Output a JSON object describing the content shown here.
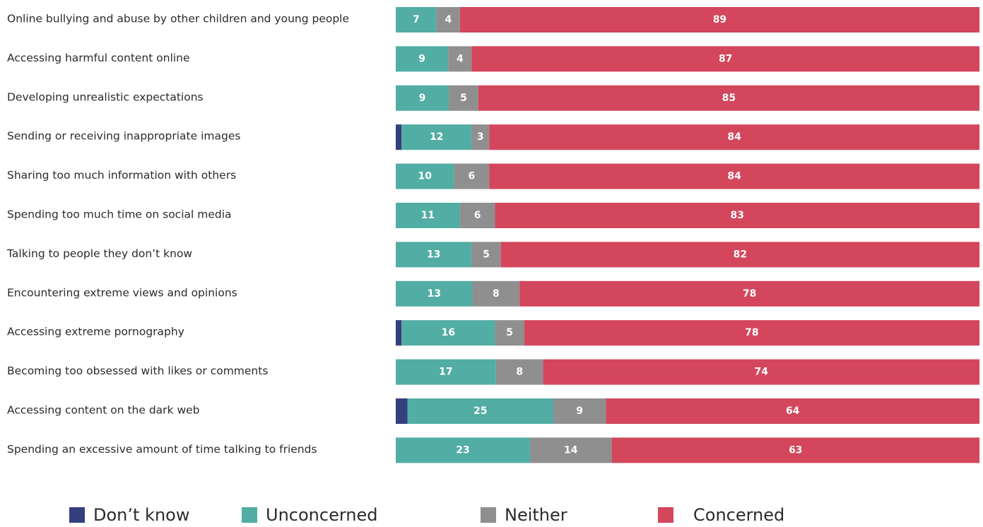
{
  "chart_data": {
    "type": "bar",
    "orientation": "horizontal",
    "stacked": true,
    "categories": [
      "Online bullying and abuse by other children and young people",
      "Accessing harmful content online",
      "Developing unrealistic expectations",
      "Sending or receiving inappropriate images",
      "Sharing too much information with others",
      "Spending too much time on social media",
      "Talking to people they don’t know",
      "Encountering extreme views and opinions",
      "Accessing extreme pornography",
      "Becoming too obsessed with likes or comments",
      "Accessing content on the dark web",
      "Spending an excessive amount of time talking to friends"
    ],
    "series": [
      {
        "name": "Don’t know",
        "color": "#343f7d",
        "values": [
          0,
          0,
          0,
          1,
          0,
          0,
          0,
          0,
          1,
          0,
          2,
          0
        ],
        "labels": [
          "",
          "",
          "",
          "",
          "",
          "",
          "",
          "",
          "",
          "",
          "",
          ""
        ]
      },
      {
        "name": "Unconcerned",
        "color": "#52ada4",
        "values": [
          7,
          9,
          9,
          12,
          10,
          11,
          13,
          13,
          16,
          17,
          25,
          23
        ],
        "labels": [
          "7",
          "9",
          "9",
          "12",
          "10",
          "11",
          "13",
          "13",
          "16",
          "17",
          "25",
          "23"
        ]
      },
      {
        "name": "Neither",
        "color": "#8f8f8f",
        "values": [
          4,
          4,
          5,
          3,
          6,
          6,
          5,
          8,
          5,
          8,
          9,
          14
        ],
        "labels": [
          "4",
          "4",
          "5",
          "3",
          "6",
          "6",
          "5",
          "8",
          "5",
          "8",
          "9",
          "14"
        ]
      },
      {
        "name": "Concerned",
        "color": "#d3465c",
        "values": [
          89,
          87,
          85,
          84,
          84,
          83,
          82,
          78,
          78,
          74,
          64,
          63
        ],
        "labels": [
          "89",
          "87",
          "85",
          "84",
          "84",
          "83",
          "82",
          "78",
          "78",
          "74",
          "64",
          "63"
        ]
      }
    ],
    "legend_position": "bottom",
    "grid": false,
    "title": "",
    "xlabel": "",
    "ylabel": ""
  },
  "legend": [
    {
      "label": "Don’t know",
      "color": "#343f7d"
    },
    {
      "label": "Unconcerned",
      "color": "#52ada4"
    },
    {
      "label": "Neither",
      "color": "#8f8f8f"
    },
    {
      "label": "Concerned",
      "color": "#d3465c"
    }
  ]
}
